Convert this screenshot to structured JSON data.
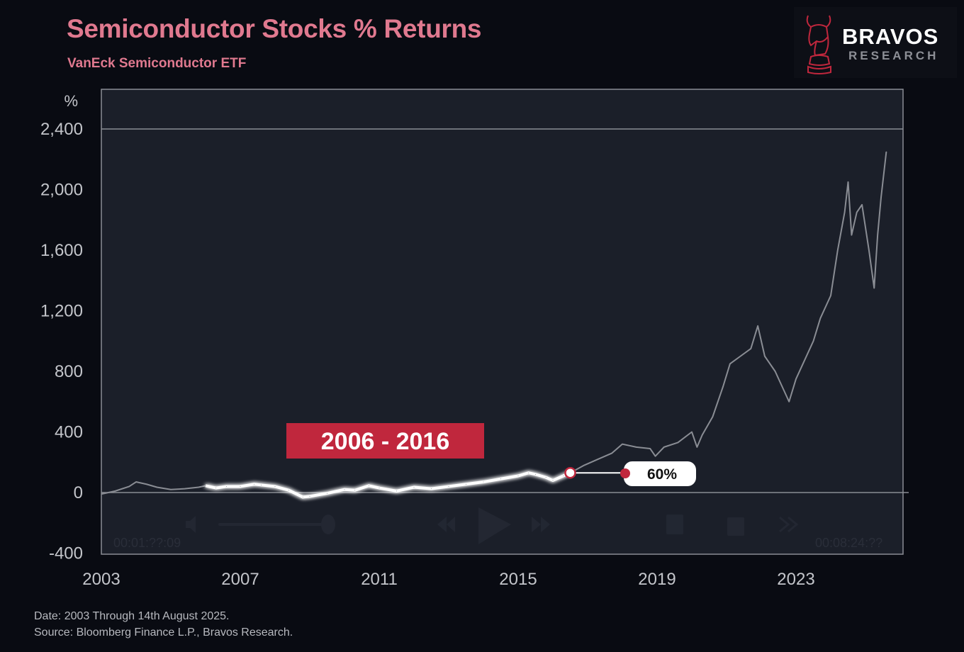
{
  "header": {
    "title": "Semiconductor Stocks % Returns",
    "subtitle": "VanEck Semiconductor ETF"
  },
  "logo": {
    "name": "BRAVOS",
    "tagline": "RESEARCH",
    "icon": "bull-chess-knight-icon"
  },
  "footer": {
    "date_note": "Date: 2003 Through 14th August 2025.",
    "source_note": "Source: Bloomberg Finance L.P., Bravos Research."
  },
  "player_overlay": {
    "time_left": "00:01:??:09",
    "time_right": "00:08:24:??",
    "icons": [
      "volume-icon",
      "rewind-icon",
      "play-icon",
      "fast-forward-icon",
      "picture-in-picture-icon",
      "share-icon",
      "chevron-right-icon"
    ]
  },
  "colors": {
    "title": "#e0798f",
    "accent_red": "#c0273d",
    "line_grey": "#8a8d94",
    "highlight_line": "#ffffff",
    "plot_bg": "#1b1f29",
    "page_bg": "#090b12"
  },
  "chart_data": {
    "type": "line",
    "title": "Semiconductor Stocks % Returns",
    "subtitle": "VanEck Semiconductor ETF",
    "xlabel": "",
    "ylabel": "%",
    "xlim": [
      2003,
      2026.1
    ],
    "ylim": [
      -400,
      2400
    ],
    "x_ticks": [
      2003,
      2007,
      2011,
      2015,
      2019,
      2023
    ],
    "x_tick_labels": [
      "2003",
      "2007",
      "2011",
      "2015",
      "2019",
      "2023"
    ],
    "y_ticks": [
      2400,
      2000,
      1600,
      1200,
      800,
      400,
      0,
      -400
    ],
    "y_tick_labels": [
      "2,400",
      "2,000",
      "1,600",
      "1,200",
      "800",
      "400",
      "0",
      "-400"
    ],
    "grid": false,
    "reference_lines": [
      0,
      2400
    ],
    "series": [
      {
        "name": "VanEck Semiconductor ETF % return",
        "x": [
          2003.0,
          2003.4,
          2003.8,
          2004.0,
          2004.3,
          2004.6,
          2005.0,
          2005.4,
          2005.8,
          2006.0,
          2006.3,
          2006.6,
          2007.0,
          2007.4,
          2007.6,
          2008.0,
          2008.4,
          2008.8,
          2009.0,
          2009.5,
          2010.0,
          2010.3,
          2010.7,
          2011.0,
          2011.5,
          2012.0,
          2012.5,
          2013.0,
          2013.5,
          2014.0,
          2014.5,
          2015.0,
          2015.3,
          2015.5,
          2015.8,
          2016.0,
          2016.3,
          2016.5,
          2016.9,
          2017.3,
          2017.7,
          2018.0,
          2018.4,
          2018.8,
          2018.95,
          2019.2,
          2019.6,
          2020.0,
          2020.15,
          2020.3,
          2020.6,
          2020.9,
          2021.1,
          2021.4,
          2021.7,
          2021.9,
          2022.1,
          2022.4,
          2022.6,
          2022.8,
          2023.0,
          2023.2,
          2023.5,
          2023.7,
          2024.0,
          2024.2,
          2024.4,
          2024.5,
          2024.6,
          2024.75,
          2024.9,
          2025.1,
          2025.25,
          2025.35,
          2025.45,
          2025.6
        ],
        "values": [
          -10,
          10,
          40,
          70,
          55,
          35,
          20,
          25,
          35,
          45,
          30,
          40,
          40,
          55,
          50,
          40,
          15,
          -30,
          -25,
          -5,
          20,
          15,
          45,
          30,
          10,
          35,
          25,
          40,
          55,
          70,
          90,
          110,
          130,
          120,
          100,
          80,
          110,
          130,
          180,
          220,
          260,
          320,
          300,
          290,
          240,
          300,
          330,
          400,
          300,
          380,
          500,
          700,
          850,
          900,
          950,
          1100,
          900,
          800,
          700,
          600,
          750,
          850,
          1000,
          1150,
          1300,
          1600,
          1850,
          2050,
          1700,
          1850,
          1900,
          1600,
          1350,
          1700,
          1950,
          2250
        ],
        "color": "#8a8d94"
      }
    ],
    "highlight": {
      "label": "2006 - 2016",
      "x_range": [
        2006.0,
        2016.5
      ],
      "end_value_label": "60%",
      "color": "#ffffff"
    }
  }
}
